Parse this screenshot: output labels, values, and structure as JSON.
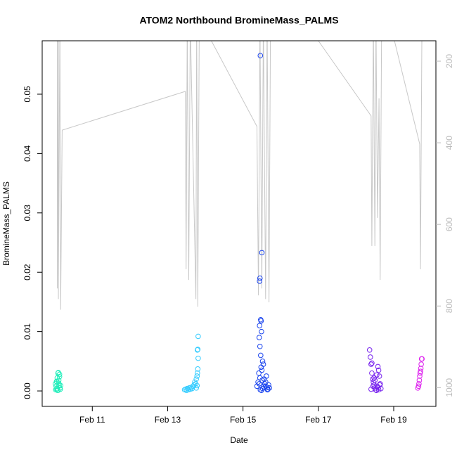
{
  "chart_data": {
    "type": "scatter",
    "title": "ATOM2 Northbound BromineMass_PALMS",
    "x_label": "Date",
    "y_label": "BromineMass_PALMS",
    "xlim": [
      9.67,
      20.12
    ],
    "ylim": [
      -0.0026,
      0.059
    ],
    "y2lim": [
      1046,
      150
    ],
    "xticks": [
      {
        "value": 11,
        "label": "Feb 11"
      },
      {
        "value": 13,
        "label": "Feb 13"
      },
      {
        "value": 15,
        "label": "Feb 15"
      },
      {
        "value": 17,
        "label": "Feb 17"
      },
      {
        "value": 19,
        "label": "Feb 19"
      }
    ],
    "yticks": [
      {
        "value": 0,
        "label": "0.00"
      },
      {
        "value": 0.01,
        "label": "0.01"
      },
      {
        "value": 0.02,
        "label": "0.02"
      },
      {
        "value": 0.03,
        "label": "0.03"
      },
      {
        "value": 0.04,
        "label": "0.04"
      },
      {
        "value": 0.05,
        "label": "0.05"
      }
    ],
    "y2ticks": [
      200,
      400,
      600,
      800,
      1000
    ],
    "series": [
      {
        "color": "#22eebb",
        "x": [
          10.02,
          10.04,
          10.05,
          10.06,
          10.07,
          10.08,
          10.09,
          10.1,
          10.11,
          10.12,
          10.13,
          10.14,
          10.15,
          10.16,
          10.03,
          10.07,
          10.11,
          10.13,
          10.05,
          10.09
        ],
        "values": [
          0.0012,
          0.0008,
          0.0003,
          0.0015,
          0.0022,
          0.0001,
          0.003,
          0.0031,
          0.0018,
          0.001,
          0.0028,
          0.0005,
          0.0003,
          0.0009,
          0.0002,
          0.0004,
          0.0013,
          0.0024,
          0.0016,
          0.0001
        ]
      },
      {
        "color": "#33ccff",
        "x": [
          13.45,
          13.48,
          13.5,
          13.52,
          13.55,
          13.57,
          13.6,
          13.62,
          13.65,
          13.68,
          13.7,
          13.72,
          13.74,
          13.76,
          13.78,
          13.79,
          13.8,
          13.81,
          13.8,
          13.79,
          13.81,
          13.78,
          13.76
        ],
        "values": [
          0.0002,
          0.0003,
          0.0001,
          0.0004,
          0.0002,
          0.0005,
          0.0003,
          0.0006,
          0.0004,
          0.0008,
          0.001,
          0.0015,
          0.0012,
          0.002,
          0.0025,
          0.003,
          0.0037,
          0.0055,
          0.007,
          0.0069,
          0.0092,
          0.0009,
          0.0005
        ]
      },
      {
        "color": "#1a44ee",
        "x": [
          15.37,
          15.4,
          15.42,
          15.43,
          15.44,
          15.45,
          15.46,
          15.47,
          15.48,
          15.49,
          15.5,
          15.52,
          15.54,
          15.56,
          15.58,
          15.6,
          15.62,
          15.64,
          15.66,
          15.68,
          15.7,
          15.44,
          15.45,
          15.47,
          15.48,
          15.5,
          15.51,
          15.46,
          15.49,
          15.52,
          15.43,
          15.45,
          15.55,
          15.6,
          15.65
        ],
        "values": [
          0.0008,
          0.0015,
          0.003,
          0.009,
          0.011,
          0.019,
          0.0565,
          0.012,
          0.0118,
          0.01,
          0.0233,
          0.005,
          0.0045,
          0.002,
          0.0012,
          0.0008,
          0.0025,
          0.0006,
          0.0003,
          0.001,
          0.0005,
          0.0185,
          0.0075,
          0.006,
          0.004,
          0.0035,
          0.0018,
          0.0002,
          0.0001,
          0.0004,
          0.0012,
          0.0022,
          0.0007,
          0.0015,
          0.0002
        ]
      },
      {
        "color": "#7722ee",
        "x": [
          18.36,
          18.38,
          18.4,
          18.42,
          18.44,
          18.46,
          18.48,
          18.5,
          18.52,
          18.54,
          18.56,
          18.58,
          18.6,
          18.62,
          18.64,
          18.66,
          18.4,
          18.45,
          18.5,
          18.55,
          18.6,
          18.42,
          18.48,
          18.58,
          18.63
        ],
        "values": [
          0.0069,
          0.0057,
          0.0045,
          0.003,
          0.002,
          0.0015,
          0.001,
          0.0005,
          0.0002,
          0.0001,
          0.0008,
          0.0041,
          0.0035,
          0.0025,
          0.0012,
          0.0004,
          0.0003,
          0.0008,
          0.0018,
          0.0027,
          0.0002,
          0.0047,
          0.0022,
          0.0006,
          0.001
        ]
      },
      {
        "color": "#dd22ee",
        "x": [
          19.64,
          19.66,
          19.67,
          19.68,
          19.69,
          19.7,
          19.71,
          19.72,
          19.73,
          19.74,
          19.75
        ],
        "values": [
          0.0005,
          0.0008,
          0.0012,
          0.0018,
          0.0025,
          0.003,
          0.0033,
          0.0038,
          0.0045,
          0.0054,
          0.0054
        ]
      },
      {
        "type": "line",
        "axis": "y2",
        "color": "#c8c8c8",
        "x": [
          10.07,
          10.07,
          10.1,
          10.1,
          10.14,
          10.16,
          10.2,
          13.47,
          13.49,
          13.52,
          13.56,
          13.6,
          13.75,
          13.77,
          13.8,
          13.84,
          14.16,
          15.37,
          15.41,
          15.45,
          15.5,
          15.54,
          15.6,
          15.64,
          15.69,
          15.73,
          17.0,
          18.4,
          18.42,
          18.46,
          18.5,
          18.53,
          18.57,
          18.61,
          18.64,
          18.68,
          19.02,
          19.69,
          19.71,
          19.75
        ],
        "values": [
          100,
          757,
          100,
          783,
          100,
          809,
          369,
          274,
          710,
          100,
          736,
          100,
          783,
          100,
          802,
          100,
          150,
          360,
          774,
          100,
          757,
          100,
          783,
          100,
          791,
          100,
          150,
          334,
          653,
          100,
          653,
          100,
          584,
          291,
          736,
          100,
          150,
          403,
          710,
          100
        ]
      }
    ]
  }
}
